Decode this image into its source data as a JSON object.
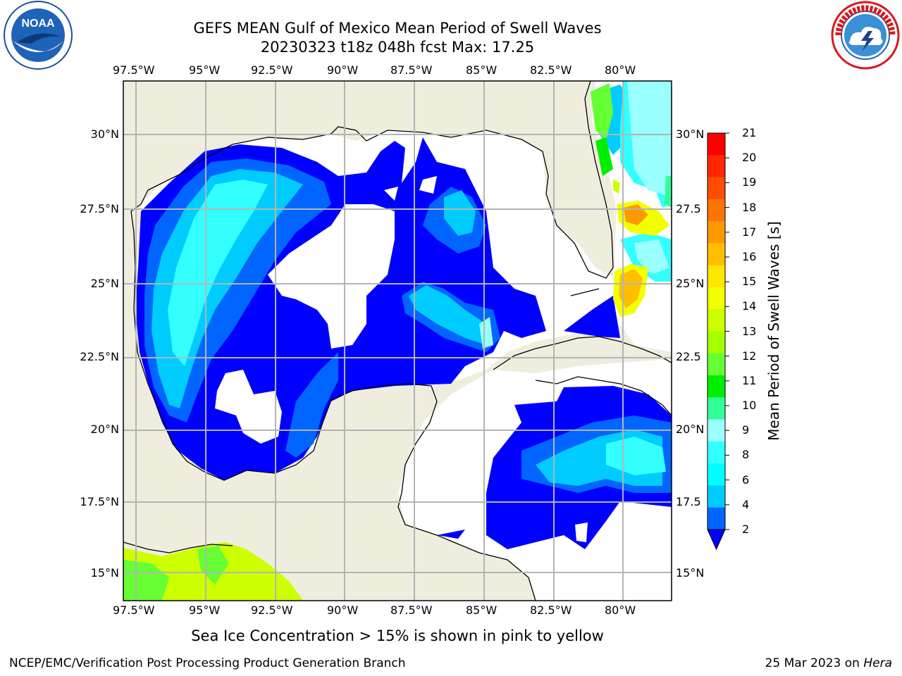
{
  "title": {
    "line1": "GEFS MEAN Gulf of Mexico Mean Period of Swell Waves",
    "line2": "20230323 t18z 048h fcst   Max: 17.25"
  },
  "logos": {
    "left": {
      "name": "noaa-logo",
      "text": "NOAA",
      "ring_text": "NATIONAL OCEANIC AND ATMOSPHERIC ADMINISTRATION · U.S. DEPARTMENT OF COMMERCE"
    },
    "right": {
      "name": "nws-logo",
      "ring_text": "NATIONAL WEATHER SERVICE"
    }
  },
  "map": {
    "lon_labels": [
      "97.5°W",
      "95°W",
      "92.5°W",
      "90°W",
      "87.5°W",
      "85°W",
      "82.5°W",
      "80°W"
    ],
    "lat_labels_left": [
      "30°N",
      "27.5°N",
      "25°N",
      "22.5°N",
      "20°N",
      "17.5°N",
      "15°N"
    ],
    "lat_labels_right": [
      "30°N",
      "27.5",
      "25°N",
      "22.5",
      "20°N",
      "17.5",
      "15°N"
    ],
    "land_color": "#efedde",
    "grid_color": "#b4b4b4"
  },
  "colorbar": {
    "label": "Mean Period of Swell Waves [s]",
    "ticks": [
      "21",
      "20",
      "19",
      "18",
      "17",
      "16",
      "15",
      "14",
      "13",
      "12",
      "11",
      "10",
      "9",
      "8",
      "6",
      "4",
      "2"
    ],
    "colors": [
      "#ff0000",
      "#ff2600",
      "#ff4d00",
      "#ff7300",
      "#ff9900",
      "#ffbf00",
      "#ffe600",
      "#f2ff00",
      "#ccff00",
      "#a6ff00",
      "#66ff33",
      "#00ee00",
      "#33ff99",
      "#99ffff",
      "#33ffff",
      "#00ffff",
      "#00ccff",
      "#0066ff",
      "#0000ff"
    ]
  },
  "notes": {
    "sea_ice": "Sea Ice Concentration > 15% is shown in pink to yellow",
    "footer_left": "NCEP/EMC/Verification Post Processing Product Generation Branch",
    "footer_date": "25 Mar 2023 on",
    "footer_host": "Hera"
  }
}
